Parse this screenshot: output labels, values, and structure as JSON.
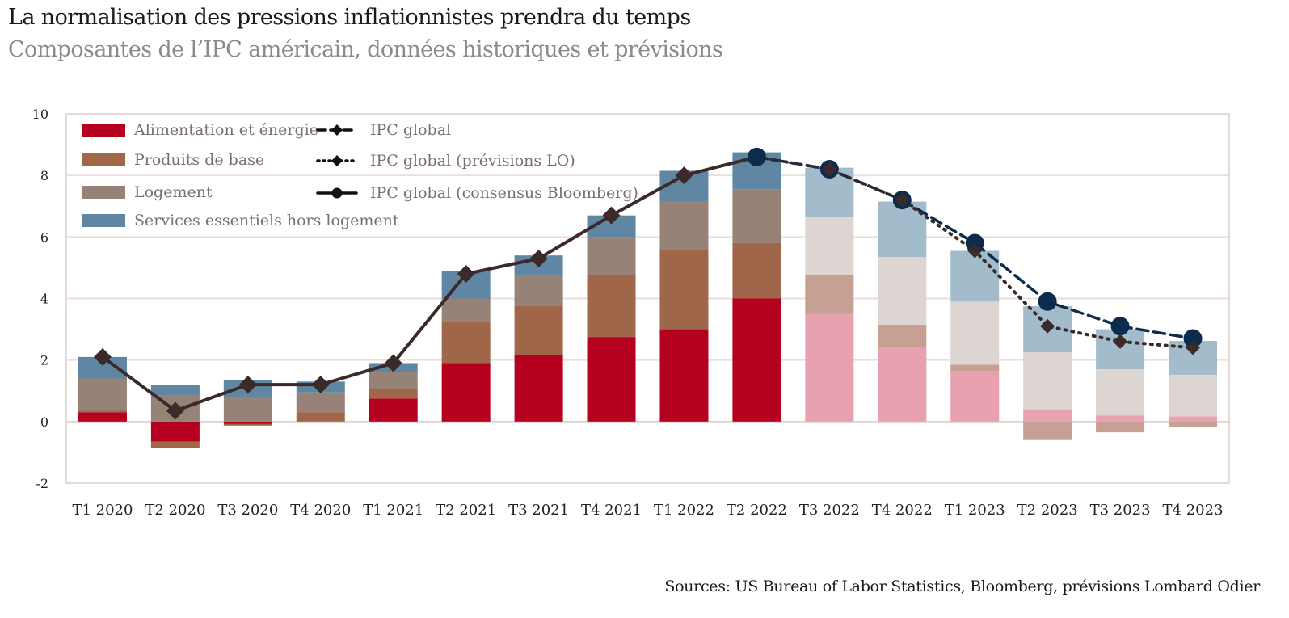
{
  "title": "La normalisation des pressions inflationnistes prendra du temps",
  "subtitle": "Composantes de l’IPC américain, données historiques et prévisions",
  "source": "Sources: US Bureau of Labor Statistics, Bloomberg, prévisions Lombard Odier",
  "chart_data": {
    "type": "bar",
    "stacked": true,
    "categories": [
      "T1 2020",
      "T2 2020",
      "T3 2020",
      "T4 2020",
      "T1 2021",
      "T2 2021",
      "T3 2021",
      "T4 2021",
      "T1 2022",
      "T2 2022",
      "T3 2022",
      "T4 2022",
      "T1 2023",
      "T2 2023",
      "T3 2023",
      "T4 2023"
    ],
    "forecast_from_index": 10,
    "ylim": [
      -2,
      10
    ],
    "yticks": [
      -2,
      0,
      2,
      4,
      6,
      8,
      10
    ],
    "ytick_labels": [
      "-2",
      "0",
      "2",
      "4",
      "6",
      "8",
      "10"
    ],
    "grid": true,
    "legend_position": "top-left",
    "series": [
      {
        "name": "Alimentation et énergie",
        "color": "#b5001f",
        "forecast_color": "#e8a2af",
        "values": [
          0.3,
          -0.65,
          -0.08,
          0.0,
          0.75,
          1.9,
          2.15,
          2.75,
          3.0,
          4.0,
          3.5,
          2.4,
          1.65,
          0.4,
          0.2,
          0.17
        ]
      },
      {
        "name": "Produits de base",
        "color": "#a0664a",
        "forecast_color": "#c5a093",
        "values": [
          0.05,
          -0.2,
          -0.05,
          0.3,
          0.3,
          1.35,
          1.6,
          2.0,
          2.6,
          1.8,
          1.25,
          0.75,
          0.2,
          -0.6,
          -0.35,
          -0.18
        ]
      },
      {
        "name": "Logement",
        "color": "#978277",
        "forecast_color": "#ddd5d1",
        "values": [
          1.05,
          0.85,
          0.8,
          0.65,
          0.55,
          0.75,
          1.0,
          1.25,
          1.55,
          1.75,
          1.9,
          2.2,
          2.05,
          1.85,
          1.5,
          1.35
        ]
      },
      {
        "name": "Services essentiels hors logement",
        "color": "#5f87a3",
        "forecast_color": "#a2bccc",
        "values": [
          0.7,
          0.35,
          0.55,
          0.35,
          0.3,
          0.9,
          0.65,
          0.7,
          1.0,
          1.2,
          1.6,
          1.8,
          1.65,
          1.5,
          1.3,
          1.1
        ]
      }
    ],
    "lines": [
      {
        "name": "IPC global",
        "style": "dashed",
        "marker": "diamond",
        "color": "#3b2a2a",
        "values": [
          2.1,
          0.35,
          1.2,
          1.2,
          1.9,
          4.8,
          5.3,
          6.7,
          8.0,
          8.6,
          null,
          null,
          null,
          null,
          null,
          null
        ]
      },
      {
        "name": "IPC global (prévisions LO)",
        "style": "dotted",
        "marker": "diamond",
        "color": "#3b2a2a",
        "values": [
          null,
          null,
          null,
          null,
          null,
          null,
          null,
          null,
          null,
          8.6,
          8.2,
          7.2,
          5.55,
          3.1,
          2.6,
          2.4
        ]
      },
      {
        "name": "IPC global (consensus Bloomberg)",
        "style": "dashed",
        "marker": "circle",
        "color": "#0c2b4d",
        "values": [
          null,
          null,
          null,
          null,
          null,
          null,
          null,
          null,
          null,
          8.6,
          8.2,
          7.2,
          5.8,
          3.9,
          3.1,
          2.7
        ]
      }
    ]
  }
}
